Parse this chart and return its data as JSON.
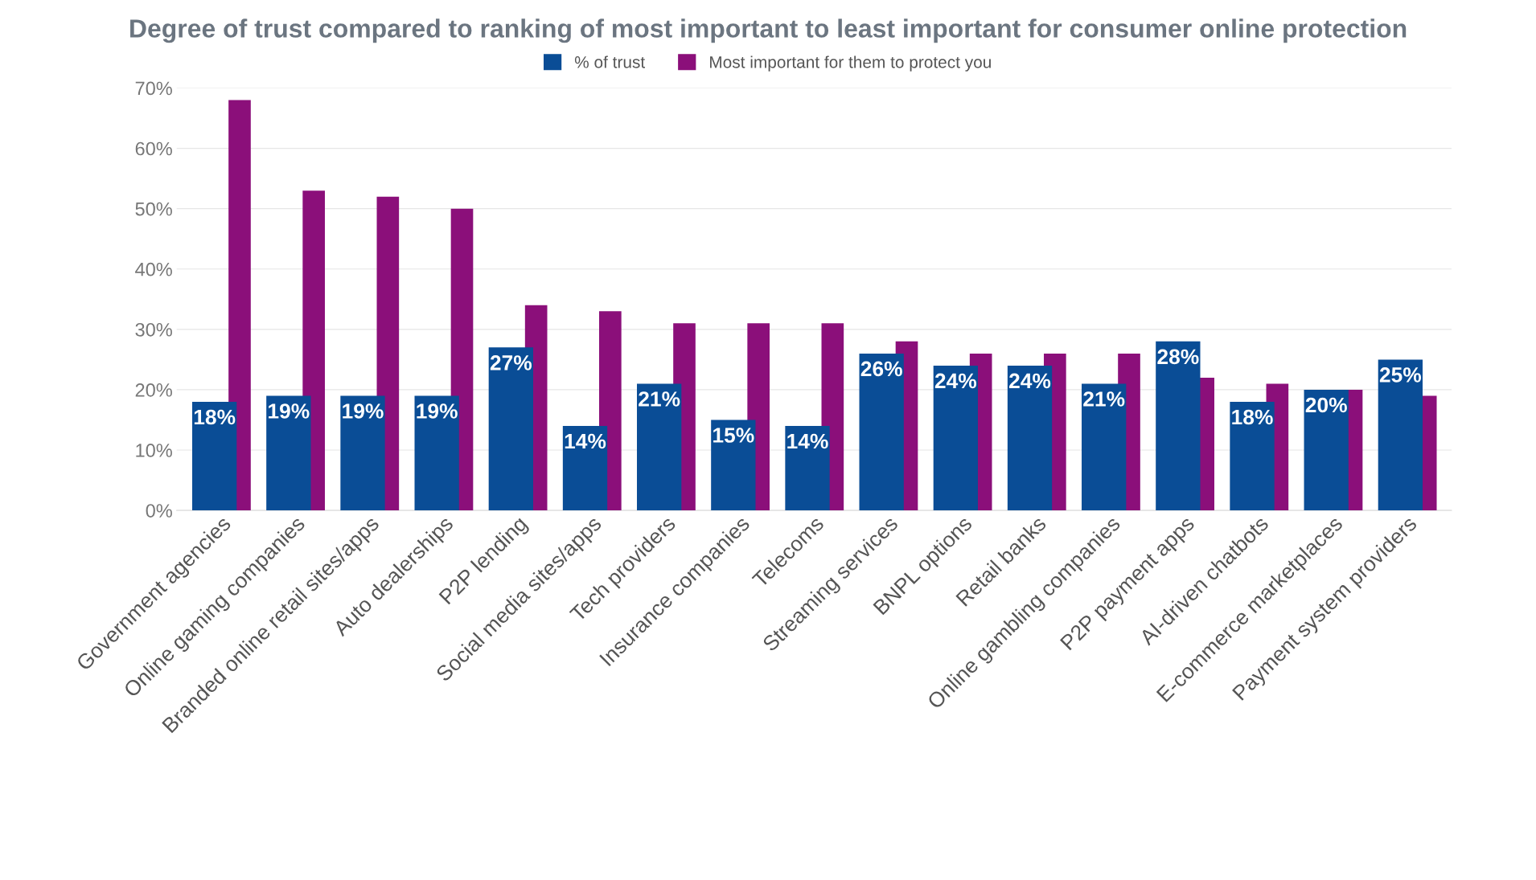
{
  "chart_data": {
    "type": "bar",
    "title": "Degree of trust compared to ranking of most important to least important for consumer online protection",
    "categories": [
      "Government agencies",
      "Online gaming companies",
      "Branded online retail sites/apps",
      "Auto dealerships",
      "P2P lending",
      "Social media sites/apps",
      "Tech providers",
      "Insurance companies",
      "Telecoms",
      "Streaming services",
      "BNPL options",
      "Retail banks",
      "Online gambling companies",
      "P2P payment apps",
      "AI-driven chatbots",
      "E-commerce marketplaces",
      "Payment system providers"
    ],
    "series": [
      {
        "name": "% of trust",
        "color": "#0a4d96",
        "values": [
          18,
          19,
          19,
          19,
          27,
          14,
          21,
          15,
          14,
          26,
          24,
          24,
          21,
          28,
          18,
          20,
          25
        ],
        "value_labels": [
          "18%",
          "19%",
          "19%",
          "19%",
          "27%",
          "14%",
          "21%",
          "15%",
          "14%",
          "26%",
          "24%",
          "24%",
          "21%",
          "28%",
          "18%",
          "20%",
          "25%"
        ]
      },
      {
        "name": "Most important for them to protect you",
        "color": "#8b0f7a",
        "values": [
          68,
          53,
          52,
          50,
          34,
          33,
          31,
          31,
          31,
          28,
          26,
          26,
          26,
          22,
          21,
          20,
          19
        ]
      }
    ],
    "ylim": [
      0,
      70
    ],
    "yticks": [
      {
        "value": 0,
        "label": "0%"
      },
      {
        "value": 10,
        "label": "10%"
      },
      {
        "value": 20,
        "label": "20%"
      },
      {
        "value": 30,
        "label": "30%"
      },
      {
        "value": 40,
        "label": "40%"
      },
      {
        "value": 50,
        "label": "50%"
      },
      {
        "value": 60,
        "label": "60%"
      },
      {
        "value": 70,
        "label": "70%"
      }
    ],
    "grid": "y",
    "legend": "top"
  }
}
